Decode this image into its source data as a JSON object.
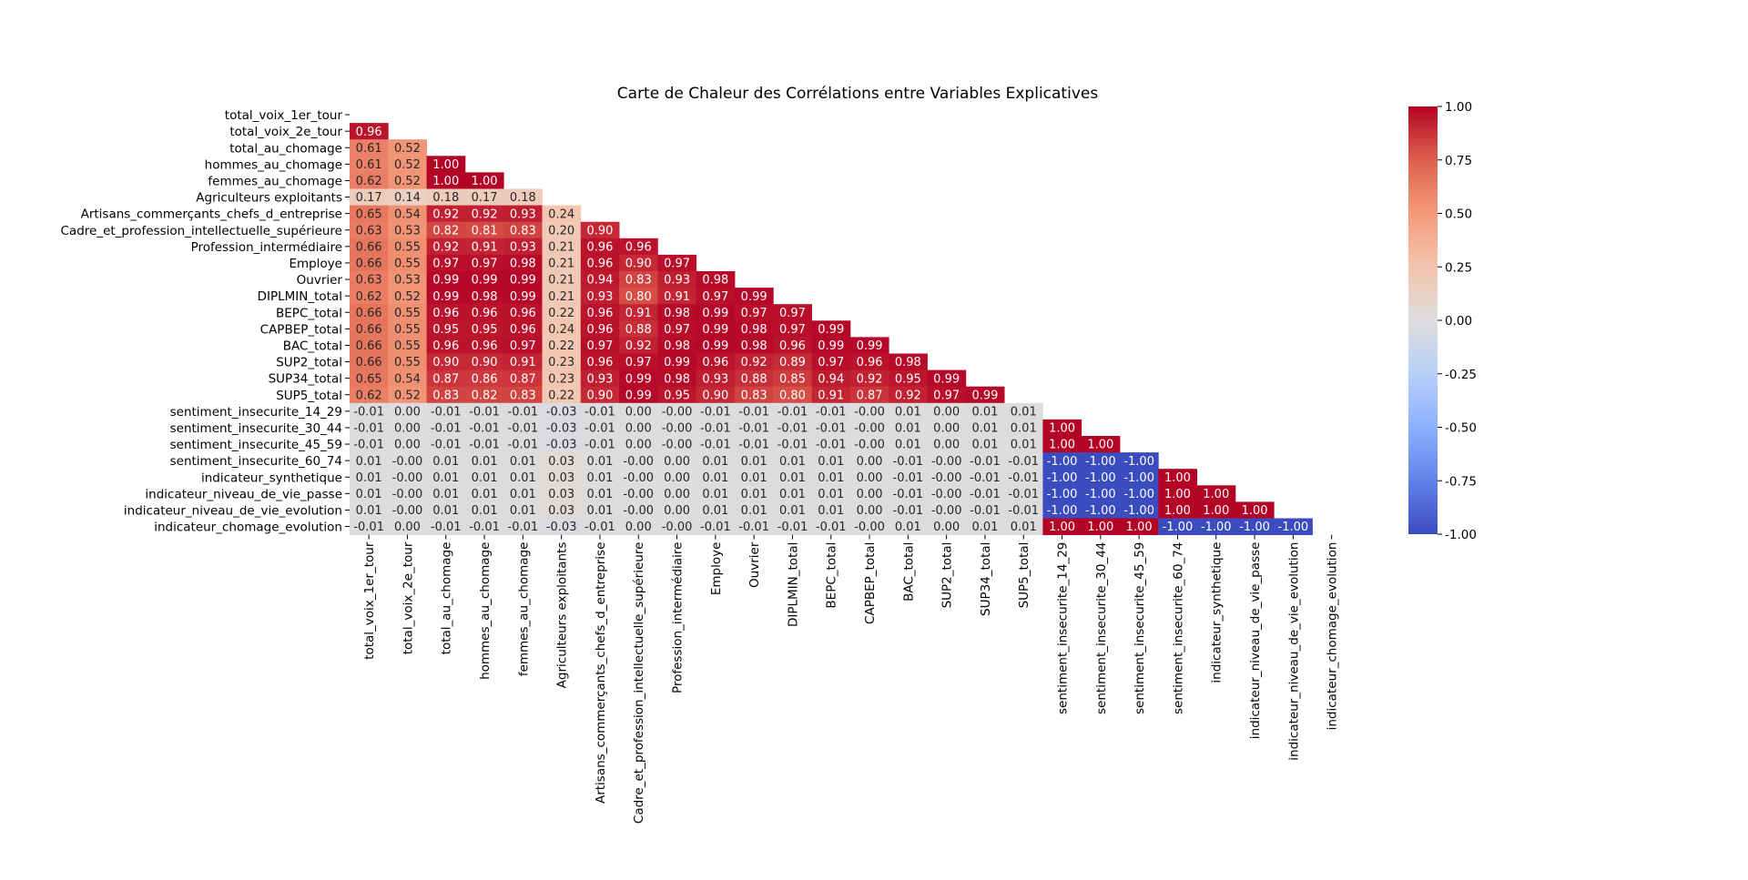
{
  "chart_data": {
    "type": "heatmap",
    "title": "Carte de Chaleur des Corrélations entre Variables Explicatives",
    "mask": "upper-triangle",
    "colormap": "coolwarm",
    "vmin": -1.0,
    "vmax": 1.0,
    "colorbar_ticks": [
      "1.00",
      "0.75",
      "0.50",
      "0.25",
      "0.00",
      "-0.25",
      "-0.50",
      "-0.75",
      "-1.00"
    ],
    "labels": [
      "total_voix_1er_tour",
      "total_voix_2e_tour",
      "total_au_chomage",
      "hommes_au_chomage",
      "femmes_au_chomage",
      "Agriculteurs exploitants",
      "Artisans_commerçants_chefs_d_entreprise",
      "Cadre_et_profession_intellectuelle_supérieure",
      "Profession_intermédiaire",
      "Employe",
      "Ouvrier",
      "DIPLMIN_total",
      "BEPC_total",
      "CAPBEP_total",
      "BAC_total",
      "SUP2_total",
      "SUP34_total",
      "SUP5_total",
      "sentiment_insecurite_14_29",
      "sentiment_insecurite_30_44",
      "sentiment_insecurite_45_59",
      "sentiment_insecurite_60_74",
      "indicateur_synthetique",
      "indicateur_niveau_de_vie_passe",
      "indicateur_niveau_de_vie_evolution",
      "indicateur_chomage_evolution"
    ],
    "rows": [
      [],
      [
        "0.96"
      ],
      [
        "0.61",
        "0.52"
      ],
      [
        "0.61",
        "0.52",
        "1.00"
      ],
      [
        "0.62",
        "0.52",
        "1.00",
        "1.00"
      ],
      [
        "0.17",
        "0.14",
        "0.18",
        "0.17",
        "0.18"
      ],
      [
        "0.65",
        "0.54",
        "0.92",
        "0.92",
        "0.93",
        "0.24"
      ],
      [
        "0.63",
        "0.53",
        "0.82",
        "0.81",
        "0.83",
        "0.20",
        "0.90"
      ],
      [
        "0.66",
        "0.55",
        "0.92",
        "0.91",
        "0.93",
        "0.21",
        "0.96",
        "0.96"
      ],
      [
        "0.66",
        "0.55",
        "0.97",
        "0.97",
        "0.98",
        "0.21",
        "0.96",
        "0.90",
        "0.97"
      ],
      [
        "0.63",
        "0.53",
        "0.99",
        "0.99",
        "0.99",
        "0.21",
        "0.94",
        "0.83",
        "0.93",
        "0.98"
      ],
      [
        "0.62",
        "0.52",
        "0.99",
        "0.98",
        "0.99",
        "0.21",
        "0.93",
        "0.80",
        "0.91",
        "0.97",
        "0.99"
      ],
      [
        "0.66",
        "0.55",
        "0.96",
        "0.96",
        "0.96",
        "0.22",
        "0.96",
        "0.91",
        "0.98",
        "0.99",
        "0.97",
        "0.97"
      ],
      [
        "0.66",
        "0.55",
        "0.95",
        "0.95",
        "0.96",
        "0.24",
        "0.96",
        "0.88",
        "0.97",
        "0.99",
        "0.98",
        "0.97",
        "0.99"
      ],
      [
        "0.66",
        "0.55",
        "0.96",
        "0.96",
        "0.97",
        "0.22",
        "0.97",
        "0.92",
        "0.98",
        "0.99",
        "0.98",
        "0.96",
        "0.99",
        "0.99"
      ],
      [
        "0.66",
        "0.55",
        "0.90",
        "0.90",
        "0.91",
        "0.23",
        "0.96",
        "0.97",
        "0.99",
        "0.96",
        "0.92",
        "0.89",
        "0.97",
        "0.96",
        "0.98"
      ],
      [
        "0.65",
        "0.54",
        "0.87",
        "0.86",
        "0.87",
        "0.23",
        "0.93",
        "0.99",
        "0.98",
        "0.93",
        "0.88",
        "0.85",
        "0.94",
        "0.92",
        "0.95",
        "0.99"
      ],
      [
        "0.62",
        "0.52",
        "0.83",
        "0.82",
        "0.83",
        "0.22",
        "0.90",
        "0.99",
        "0.95",
        "0.90",
        "0.83",
        "0.80",
        "0.91",
        "0.87",
        "0.92",
        "0.97",
        "0.99"
      ],
      [
        "-0.01",
        "0.00",
        "-0.01",
        "-0.01",
        "-0.01",
        "-0.03",
        "-0.01",
        "0.00",
        "-0.00",
        "-0.01",
        "-0.01",
        "-0.01",
        "-0.01",
        "-0.00",
        "0.01",
        "0.00",
        "0.01",
        "0.01"
      ],
      [
        "-0.01",
        "0.00",
        "-0.01",
        "-0.01",
        "-0.01",
        "-0.03",
        "-0.01",
        "0.00",
        "-0.00",
        "-0.01",
        "-0.01",
        "-0.01",
        "-0.01",
        "-0.00",
        "0.01",
        "0.00",
        "0.01",
        "0.01",
        "1.00"
      ],
      [
        "-0.01",
        "0.00",
        "-0.01",
        "-0.01",
        "-0.01",
        "-0.03",
        "-0.01",
        "0.00",
        "-0.00",
        "-0.01",
        "-0.01",
        "-0.01",
        "-0.01",
        "-0.00",
        "0.01",
        "0.00",
        "0.01",
        "0.01",
        "1.00",
        "1.00"
      ],
      [
        "0.01",
        "-0.00",
        "0.01",
        "0.01",
        "0.01",
        "0.03",
        "0.01",
        "-0.00",
        "0.00",
        "0.01",
        "0.01",
        "0.01",
        "0.01",
        "0.00",
        "-0.01",
        "-0.00",
        "-0.01",
        "-0.01",
        "-1.00",
        "-1.00",
        "-1.00"
      ],
      [
        "0.01",
        "-0.00",
        "0.01",
        "0.01",
        "0.01",
        "0.03",
        "0.01",
        "-0.00",
        "0.00",
        "0.01",
        "0.01",
        "0.01",
        "0.01",
        "0.00",
        "-0.01",
        "-0.00",
        "-0.01",
        "-0.01",
        "-1.00",
        "-1.00",
        "-1.00",
        "1.00"
      ],
      [
        "0.01",
        "-0.00",
        "0.01",
        "0.01",
        "0.01",
        "0.03",
        "0.01",
        "-0.00",
        "0.00",
        "0.01",
        "0.01",
        "0.01",
        "0.01",
        "0.00",
        "-0.01",
        "-0.00",
        "-0.01",
        "-0.01",
        "-1.00",
        "-1.00",
        "-1.00",
        "1.00",
        "1.00"
      ],
      [
        "0.01",
        "-0.00",
        "0.01",
        "0.01",
        "0.01",
        "0.03",
        "0.01",
        "-0.00",
        "0.00",
        "0.01",
        "0.01",
        "0.01",
        "0.01",
        "0.00",
        "-0.01",
        "-0.00",
        "-0.01",
        "-0.01",
        "-1.00",
        "-1.00",
        "-1.00",
        "1.00",
        "1.00",
        "1.00"
      ],
      [
        "-0.01",
        "0.00",
        "-0.01",
        "-0.01",
        "-0.01",
        "-0.03",
        "-0.01",
        "0.00",
        "-0.00",
        "-0.01",
        "-0.01",
        "-0.01",
        "-0.01",
        "-0.00",
        "0.01",
        "0.00",
        "0.01",
        "0.01",
        "1.00",
        "1.00",
        "1.00",
        "-1.00",
        "-1.00",
        "-1.00",
        "-1.00"
      ]
    ]
  }
}
